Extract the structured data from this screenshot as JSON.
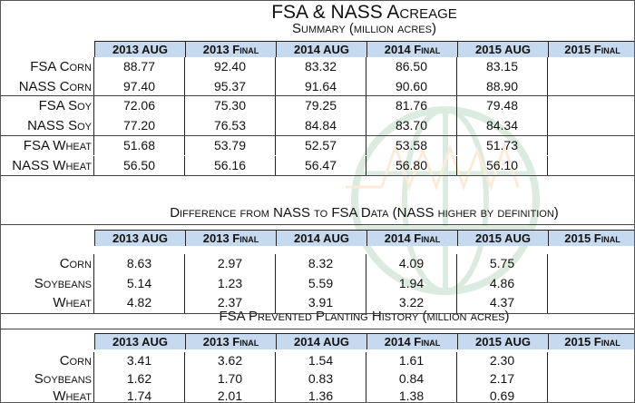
{
  "title": "FSA & NASS Acreage",
  "columns": [
    "2013 AUG",
    "2013 Final",
    "2014 AUG",
    "2014 Final",
    "2015 AUG",
    "2015 Final"
  ],
  "summary": {
    "title": "Summary (million acres)",
    "rows": [
      {
        "label": "FSA Corn",
        "values": [
          "88.77",
          "92.40",
          "83.32",
          "86.50",
          "83.15",
          ""
        ]
      },
      {
        "label": "NASS Corn",
        "values": [
          "97.40",
          "95.37",
          "91.64",
          "90.60",
          "88.90",
          ""
        ]
      },
      {
        "label": "FSA Soy",
        "values": [
          "72.06",
          "75.30",
          "79.25",
          "81.76",
          "79.48",
          ""
        ]
      },
      {
        "label": "NASS Soy",
        "values": [
          "77.20",
          "76.53",
          "84.84",
          "83.70",
          "84.34",
          ""
        ]
      },
      {
        "label": "FSA Wheat",
        "values": [
          "51.68",
          "53.79",
          "52.57",
          "53.58",
          "51.73",
          ""
        ]
      },
      {
        "label": "NASS Wheat",
        "values": [
          "56.50",
          "56.16",
          "56.47",
          "56.80",
          "56.10",
          ""
        ]
      }
    ]
  },
  "difference": {
    "title": "Difference from NASS to FSA Data (NASS higher by definition)",
    "rows": [
      {
        "label": "Corn",
        "values": [
          "8.63",
          "2.97",
          "8.32",
          "4.09",
          "5.75",
          ""
        ]
      },
      {
        "label": "Soybeans",
        "values": [
          "5.14",
          "1.23",
          "5.59",
          "1.94",
          "4.86",
          ""
        ]
      },
      {
        "label": "Wheat",
        "values": [
          "4.82",
          "2.37",
          "3.91",
          "3.22",
          "4.37",
          ""
        ]
      }
    ]
  },
  "prevented": {
    "title": "FSA Prevented Planting History (million acres)",
    "rows": [
      {
        "label": "Corn",
        "values": [
          "3.41",
          "3.62",
          "1.54",
          "1.61",
          "2.30",
          ""
        ]
      },
      {
        "label": "Soybeans",
        "values": [
          "1.62",
          "1.70",
          "0.83",
          "0.84",
          "2.17",
          ""
        ]
      },
      {
        "label": "Wheat",
        "values": [
          "1.74",
          "2.01",
          "1.36",
          "1.38",
          "0.69",
          ""
        ]
      }
    ]
  }
}
